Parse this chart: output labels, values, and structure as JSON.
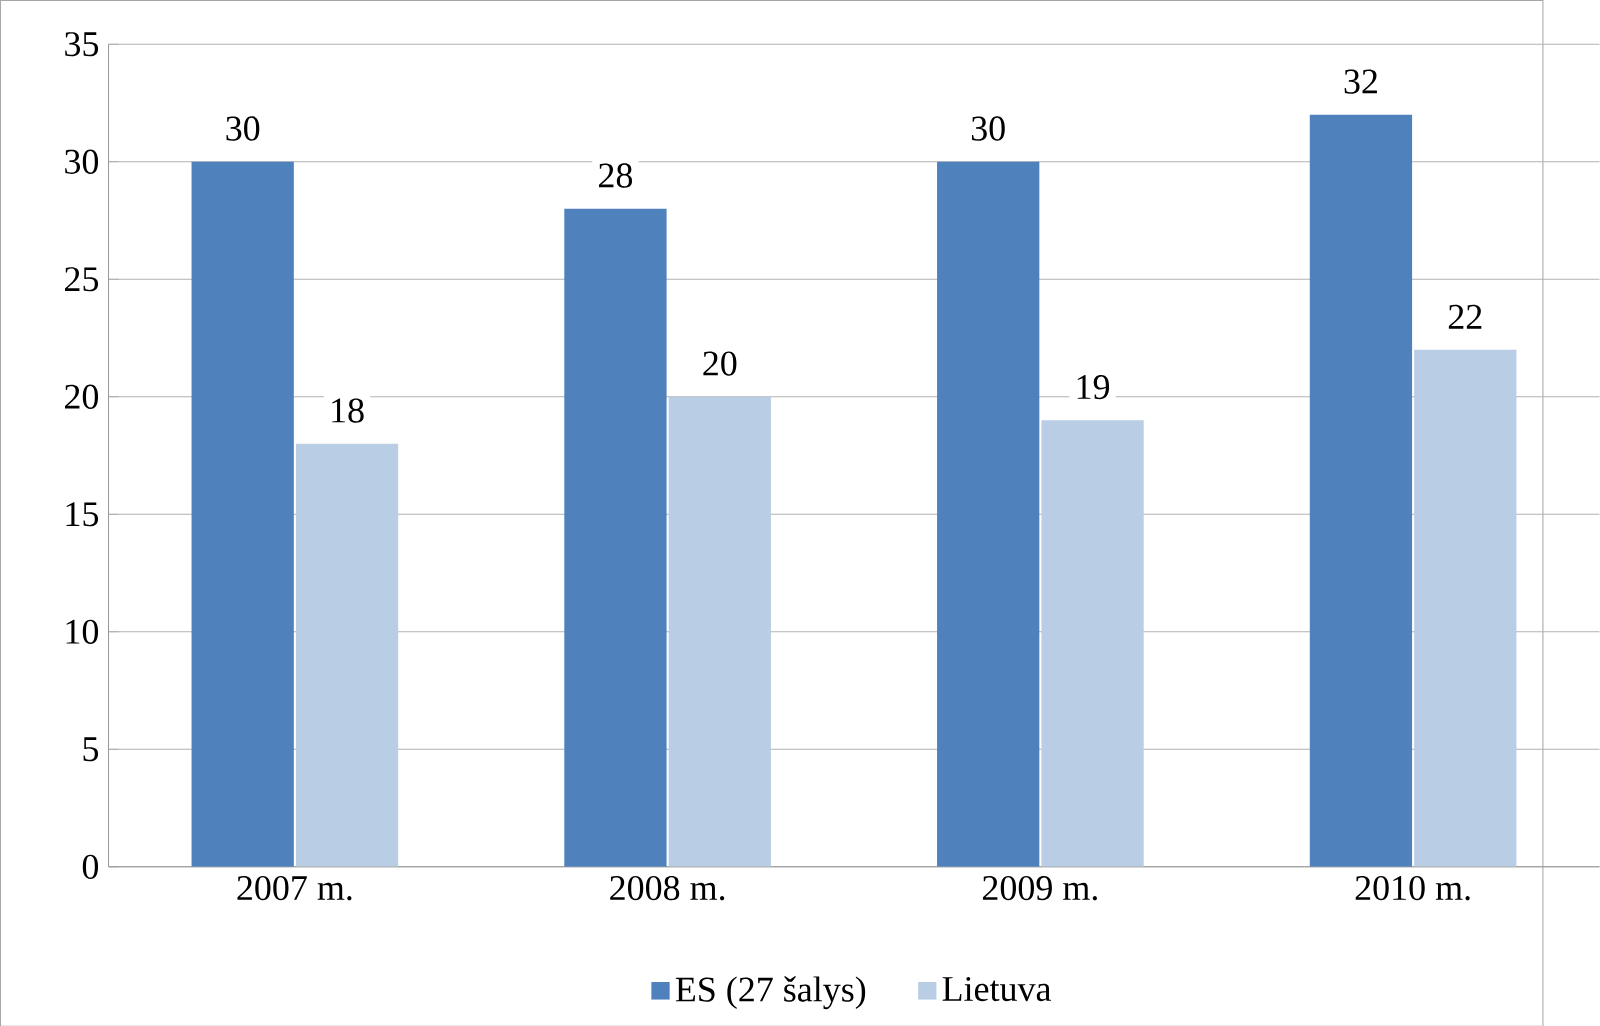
{
  "chart_data": {
    "type": "bar",
    "categories": [
      "2007 m.",
      "2008 m.",
      "2009 m.",
      "2010 m."
    ],
    "series": [
      {
        "name": "ES (27 šalys)",
        "color": "#4f81bd",
        "values": [
          30,
          28,
          30,
          32
        ]
      },
      {
        "name": "Lietuva",
        "color": "#b9cde5",
        "values": [
          18,
          20,
          19,
          22
        ]
      }
    ],
    "ylim": [
      0,
      35
    ],
    "yticks": [
      0,
      5,
      10,
      15,
      20,
      25,
      30,
      35
    ],
    "grid": "y",
    "data_labels": true,
    "legend": "bottom"
  }
}
